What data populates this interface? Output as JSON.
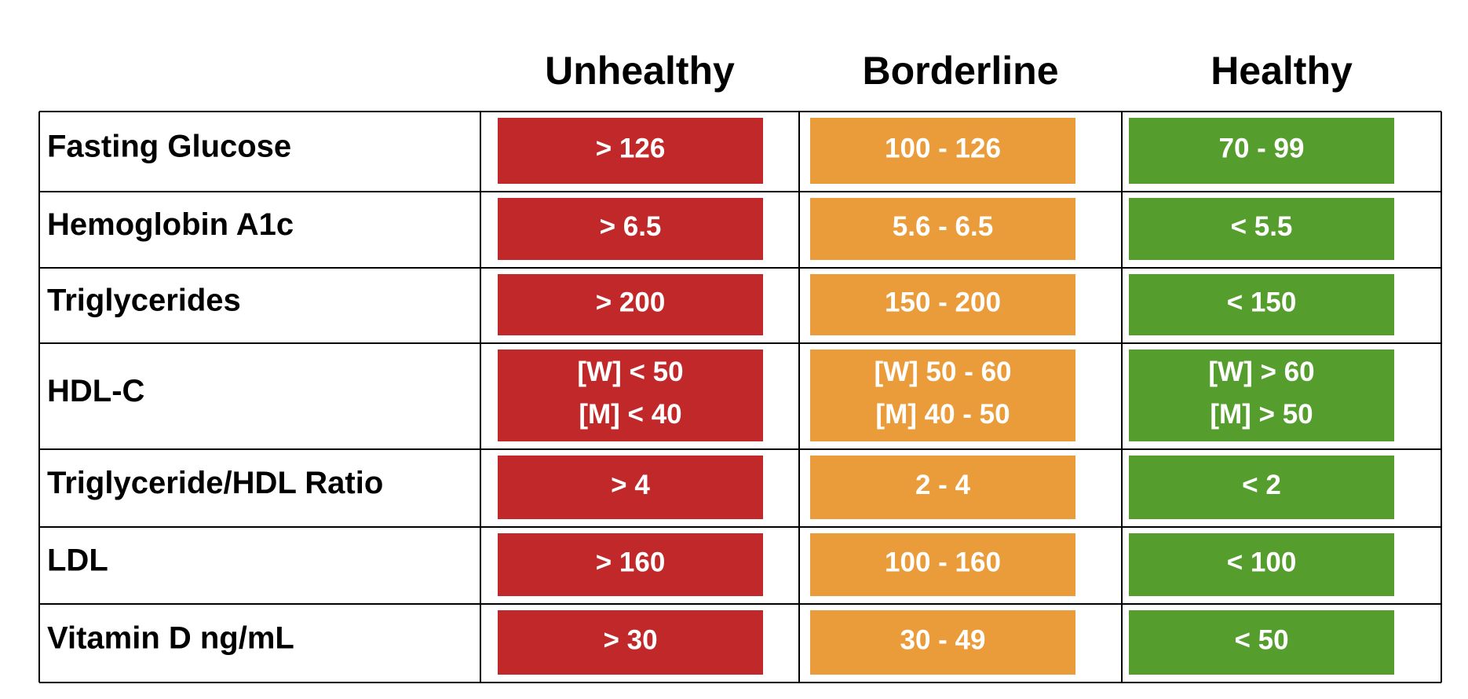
{
  "table": {
    "columns": [
      "Unhealthy",
      "Borderline",
      "Healthy"
    ],
    "rows": [
      {
        "label": "Fasting Glucose",
        "cells": [
          [
            "> 126"
          ],
          [
            "100 - 126"
          ],
          [
            "70 - 99"
          ]
        ]
      },
      {
        "label": "Hemoglobin A1c",
        "cells": [
          [
            "> 6.5"
          ],
          [
            "5.6 - 6.5"
          ],
          [
            "< 5.5"
          ]
        ]
      },
      {
        "label": "Triglycerides",
        "cells": [
          [
            "> 200"
          ],
          [
            "150 - 200"
          ],
          [
            "< 150"
          ]
        ]
      },
      {
        "label": "HDL-C",
        "cells": [
          [
            "[W] < 50",
            "[M] < 40"
          ],
          [
            "[W] 50 - 60",
            "[M] 40 - 50"
          ],
          [
            "[W] > 60",
            "[M] > 50"
          ]
        ]
      },
      {
        "label": "Triglyceride/HDL Ratio",
        "cells": [
          [
            "> 4"
          ],
          [
            "2 - 4"
          ],
          [
            "< 2"
          ]
        ]
      },
      {
        "label": "LDL",
        "cells": [
          [
            "> 160"
          ],
          [
            "100 - 160"
          ],
          [
            "< 100"
          ]
        ]
      },
      {
        "label": "Vitamin D ng/mL",
        "cells": [
          [
            "> 30"
          ],
          [
            "30 - 49"
          ],
          [
            "< 50"
          ]
        ]
      }
    ]
  }
}
